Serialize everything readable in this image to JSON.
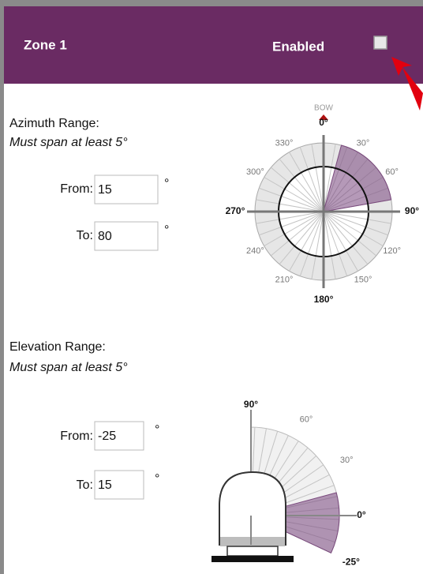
{
  "header": {
    "title": "Zone 1",
    "enabled_label": "Enabled",
    "enabled": false
  },
  "azimuth": {
    "label": "Azimuth Range:",
    "note": "Must span at least 5°",
    "from_label": "From:",
    "from": 15,
    "to_label": "To:",
    "to": 80,
    "unit": "°",
    "bow_label": "BOW",
    "dial_ticks": [
      {
        "value": 0,
        "label": "0°"
      },
      {
        "value": 30,
        "label": "30°"
      },
      {
        "value": 60,
        "label": "60°"
      },
      {
        "value": 90,
        "label": "90°"
      },
      {
        "value": 120,
        "label": "120°"
      },
      {
        "value": 150,
        "label": "150°"
      },
      {
        "value": 180,
        "label": "180°"
      },
      {
        "value": 210,
        "label": "210°"
      },
      {
        "value": 240,
        "label": "240°"
      },
      {
        "value": 270,
        "label": "270°"
      },
      {
        "value": 300,
        "label": "300°"
      },
      {
        "value": 330,
        "label": "330°"
      }
    ]
  },
  "elevation": {
    "label": "Elevation Range:",
    "note": "Must span at least 5°",
    "from_label": "From:",
    "from": -25,
    "to_label": "To:",
    "to": 15,
    "unit": "°",
    "dial_ticks": [
      {
        "value": 90,
        "label": "90°"
      },
      {
        "value": 60,
        "label": "60°"
      },
      {
        "value": 30,
        "label": "30°"
      },
      {
        "value": 0,
        "label": "0°"
      },
      {
        "value": -25,
        "label": "-25°"
      }
    ]
  }
}
